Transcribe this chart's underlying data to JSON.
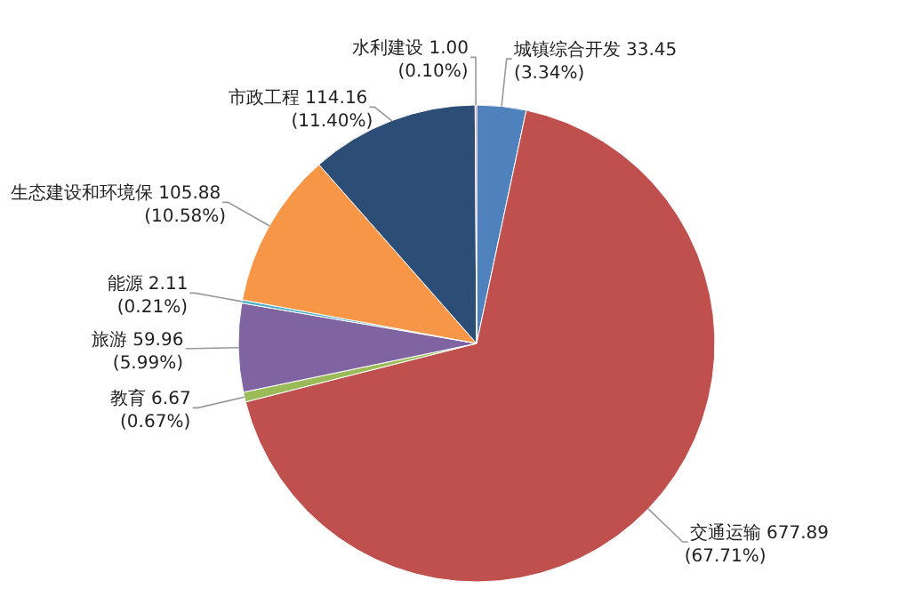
{
  "chart_data": {
    "type": "pie",
    "categories": [
      "城镇综合开发",
      "交通运输",
      "教育",
      "旅游",
      "能源",
      "生态建设和环境保",
      "市政工程",
      "水利建设"
    ],
    "values": [
      33.45,
      677.89,
      6.67,
      59.96,
      2.11,
      105.88,
      114.16,
      1.0
    ],
    "value_labels": [
      "33.45 (3.34%)",
      "677.89 (67.71%)",
      "6.67 (0.67%)",
      "59.96 (5.99%)",
      "2.11 (0.21%)",
      "105.88 (10.58%)",
      "114.16 (11.40%)",
      "1.00 (0.10%)"
    ],
    "colors": [
      "#4f81bd",
      "#c0504d",
      "#9bbb59",
      "#8064a2",
      "#4bacc6",
      "#f79646",
      "#2c4d75",
      "#c0504d"
    ],
    "legend": false
  }
}
